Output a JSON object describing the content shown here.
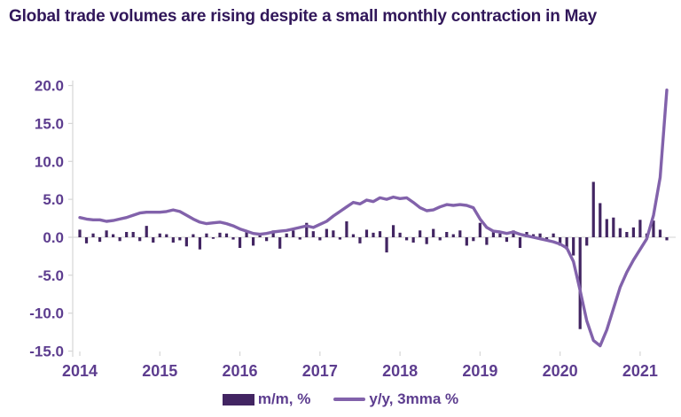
{
  "title": "Global trade volumes are rising despite a small monthly contraction in May",
  "legend": [
    {
      "label": "m/m, %",
      "swatch": "bar"
    },
    {
      "label": "y/y, 3mma %",
      "swatch": "line"
    }
  ],
  "colors": {
    "title_text": "#31175a",
    "axis_text": "#5d3d8f",
    "bar": "#422562",
    "line": "#8262ab",
    "axis_line": "#d6d6d6",
    "zero_line": "#dcdcdc",
    "background": "#ffffff"
  },
  "chart_data": {
    "type": "bar",
    "subtype": "bar+line combo, monthly series",
    "x_start": "2014-01",
    "x_end": "2021-05",
    "x_tick_labels": [
      "2014",
      "2015",
      "2016",
      "2017",
      "2018",
      "2019",
      "2020",
      "2021"
    ],
    "y_ticks": [
      20.0,
      15.0,
      10.0,
      5.0,
      0.0,
      -5.0,
      -10.0,
      -15.0
    ],
    "ylim": [
      -15.0,
      20.0
    ],
    "grid": "y-axis line with ticks at left, faint zero line, no other gridlines",
    "legend_position": "bottom center",
    "series": [
      {
        "name": "m/m, %",
        "type": "bar",
        "color": "#422562",
        "values": [
          1.0,
          -0.8,
          0.5,
          -0.6,
          0.9,
          0.4,
          -0.5,
          0.7,
          0.7,
          -0.5,
          1.5,
          -0.7,
          0.5,
          0.4,
          -0.7,
          -0.4,
          -1.2,
          0.4,
          -1.6,
          0.5,
          -0.2,
          0.6,
          0.5,
          -0.3,
          -1.4,
          0.9,
          -1.1,
          0.5,
          -0.5,
          0.9,
          -1.5,
          0.5,
          0.9,
          -0.3,
          1.9,
          0.8,
          -0.4,
          1.1,
          0.9,
          -0.3,
          2.1,
          0.4,
          -0.8,
          1.0,
          0.6,
          0.8,
          -2.0,
          1.6,
          0.6,
          -0.4,
          -0.7,
          0.9,
          -0.9,
          1.1,
          -0.4,
          0.7,
          0.4,
          0.9,
          -1.1,
          -0.5,
          1.9,
          -1.0,
          0.8,
          0.5,
          -0.6,
          0.9,
          -1.4,
          0.7,
          0.4,
          0.5,
          -0.4,
          0.5,
          -1.1,
          -1.6,
          -2.4,
          -12.1,
          -1.1,
          7.3,
          4.5,
          2.4,
          2.6,
          1.2,
          0.7,
          1.3,
          2.3,
          0.5,
          2.2,
          1.0,
          -0.4
        ]
      },
      {
        "name": "y/y, 3mma %",
        "type": "line",
        "color": "#8262ab",
        "values": [
          2.6,
          2.4,
          2.3,
          2.3,
          2.1,
          2.2,
          2.4,
          2.6,
          2.9,
          3.2,
          3.3,
          3.3,
          3.3,
          3.4,
          3.6,
          3.4,
          2.9,
          2.4,
          2.0,
          1.8,
          1.9,
          2.0,
          1.8,
          1.5,
          1.1,
          0.8,
          0.5,
          0.4,
          0.5,
          0.7,
          0.8,
          0.9,
          1.1,
          1.3,
          1.5,
          1.3,
          1.7,
          2.1,
          2.8,
          3.4,
          4.0,
          4.6,
          4.4,
          4.9,
          4.7,
          5.2,
          5.0,
          5.3,
          5.1,
          5.2,
          4.6,
          3.9,
          3.5,
          3.6,
          4.0,
          4.3,
          4.2,
          4.3,
          4.2,
          3.9,
          2.4,
          1.3,
          0.8,
          0.7,
          0.5,
          0.7,
          0.4,
          0.2,
          0.0,
          -0.2,
          -0.4,
          -0.6,
          -0.9,
          -1.4,
          -3.2,
          -7.0,
          -11.0,
          -13.6,
          -14.3,
          -12.2,
          -9.4,
          -6.6,
          -4.6,
          -3.0,
          -1.6,
          -0.2,
          2.9,
          7.9,
          19.4
        ]
      }
    ]
  }
}
